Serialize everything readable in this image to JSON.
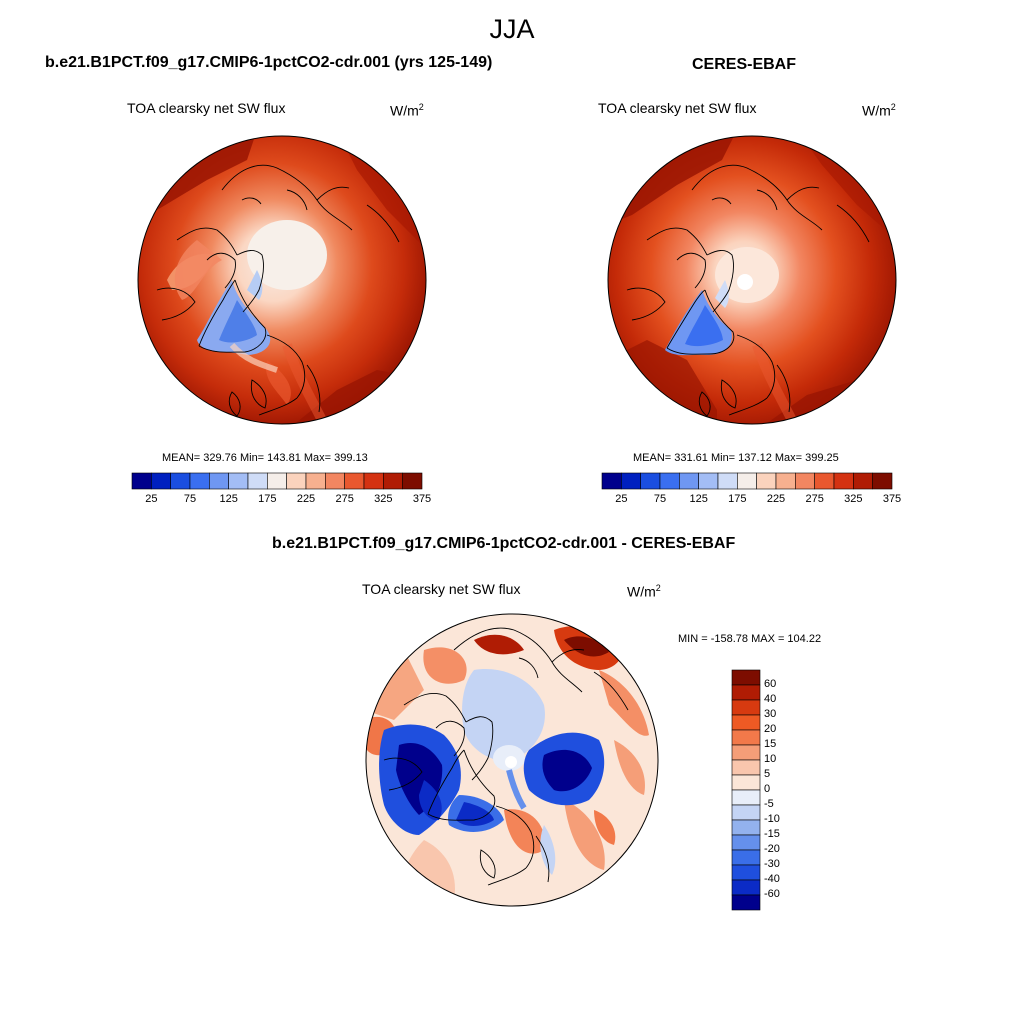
{
  "season": "JJA",
  "units_base": "W/m",
  "units_exp": "2",
  "panels": {
    "model": {
      "case": "b.e21.B1PCT.f09_g17.CMIP6-1pctCO2-cdr.001 (yrs 125-149)",
      "variable": "TOA clearsky net SW flux",
      "stats": "MEAN= 329.76  Min= 143.81  Max= 399.13",
      "mean": 329.76,
      "min": 143.81,
      "max": 399.13
    },
    "obs": {
      "case": "CERES-EBAF",
      "variable": "TOA clearsky net SW flux",
      "stats": "MEAN= 331.61  Min= 137.12  Max= 399.25",
      "mean": 331.61,
      "min": 137.12,
      "max": 399.25
    },
    "diff": {
      "case": "b.e21.B1PCT.f09_g17.CMIP6-1pctCO2-cdr.001 - CERES-EBAF",
      "variable": "TOA clearsky net SW flux",
      "stats": "MIN = -158.78 MAX = 104.22",
      "min": -158.78,
      "max": 104.22
    }
  },
  "colorbar_main": {
    "colors": [
      "#00008c",
      "#0020c0",
      "#1a4ee0",
      "#3a6ff0",
      "#6f97f2",
      "#a3bdf5",
      "#cfdcf7",
      "#f5eee9",
      "#fbd3bd",
      "#f7b08f",
      "#f28661",
      "#e9582f",
      "#d43212",
      "#b01c04",
      "#7d0d00"
    ],
    "labels": [
      "25",
      "75",
      "125",
      "175",
      "225",
      "275",
      "325",
      "375"
    ]
  },
  "colorbar_diff": {
    "colors": [
      "#7d0d00",
      "#b01c04",
      "#d73a10",
      "#ee5a24",
      "#f2794a",
      "#f59e78",
      "#f9c6ad",
      "#fbe6d8",
      "#e8eef9",
      "#c4d4f4",
      "#93b2ee",
      "#6590ec",
      "#3a6ee8",
      "#1f4fde",
      "#0b2bc6",
      "#00008c"
    ],
    "labels": [
      "60",
      "40",
      "30",
      "20",
      "15",
      "10",
      "5",
      "0",
      "-5",
      "-10",
      "-15",
      "-20",
      "-30",
      "-40",
      "-60"
    ]
  }
}
